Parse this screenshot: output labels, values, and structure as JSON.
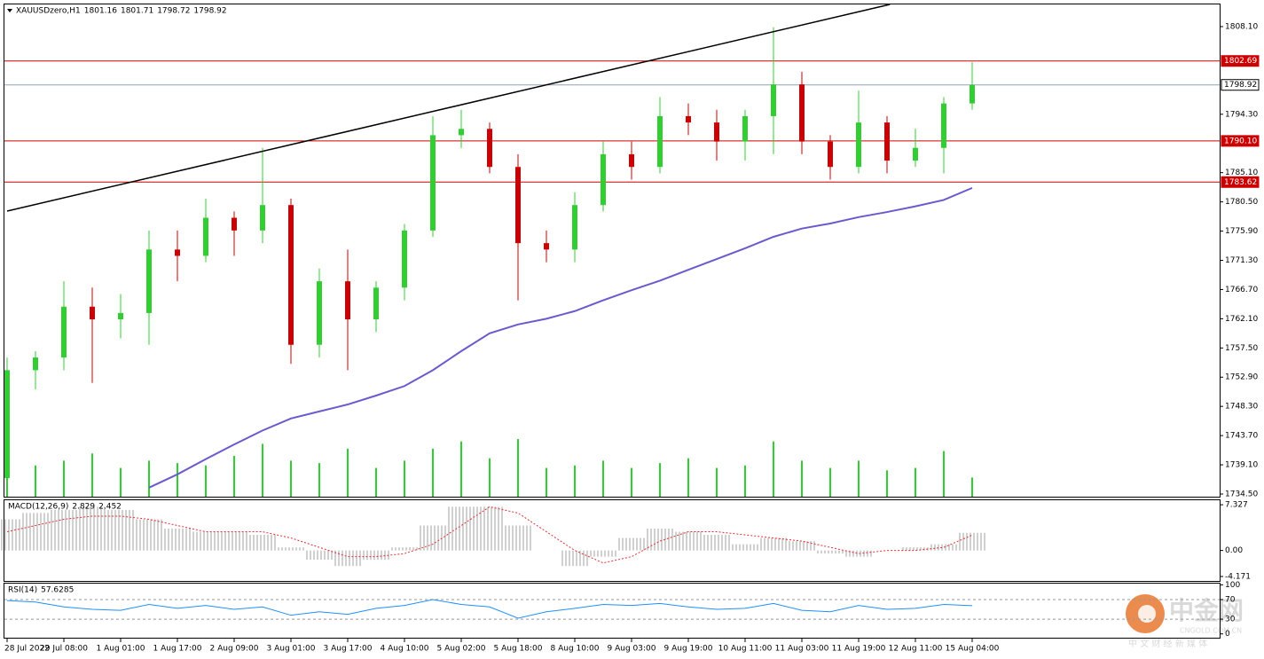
{
  "chart_data": [
    {
      "type": "candlestick",
      "title": "XAUUSDzero,H1",
      "header_values": [
        1801.16,
        1801.71,
        1798.72,
        1798.92
      ],
      "categories": [
        "28 Jul 2022",
        null,
        "29 Jul 08:00",
        null,
        "1 Aug 01:00",
        null,
        "1 Aug 17:00",
        null,
        "2 Aug 09:00",
        null,
        "3 Aug 01:00",
        null,
        "3 Aug 17:00",
        null,
        "4 Aug 10:00",
        null,
        "5 Aug 02:00",
        null,
        "5 Aug 18:00",
        null,
        "8 Aug 10:00",
        null,
        "9 Aug 03:00",
        null,
        "9 Aug 19:00",
        null,
        "10 Aug 11:00",
        null,
        "11 Aug 03:00",
        null,
        "11 Aug 19:00",
        null,
        "12 Aug 11:00",
        null,
        "15 Aug 04:00"
      ],
      "open": [
        1737,
        1754,
        1756,
        1764,
        1762,
        1763,
        1773,
        1772,
        1778,
        1776,
        1780,
        1758,
        1768,
        1762,
        1767,
        1776,
        1791,
        1792,
        1786,
        1774,
        1773,
        1780,
        1788,
        1786,
        1794,
        1793,
        1790,
        1794,
        1799,
        1790,
        1786,
        1793,
        1787,
        1789,
        1796
      ],
      "high": [
        1756,
        1757,
        1768,
        1767,
        1766,
        1776,
        1776,
        1781,
        1779,
        1789,
        1781,
        1770,
        1773,
        1768,
        1777,
        1794,
        1795,
        1793,
        1788,
        1776,
        1782,
        1790,
        1790,
        1797,
        1796,
        1795,
        1795,
        1808,
        1801,
        1791,
        1798,
        1794,
        1792,
        1797,
        1802.5
      ],
      "low": [
        1735,
        1751,
        1754,
        1752,
        1759,
        1758,
        1768,
        1771,
        1772,
        1774,
        1755,
        1756,
        1754,
        1760,
        1765,
        1775,
        1789,
        1785,
        1765,
        1771,
        1771,
        1779,
        1784,
        1785,
        1791,
        1787,
        1787,
        1788,
        1788,
        1784,
        1785,
        1785,
        1786,
        1785,
        1795
      ],
      "close": [
        1754,
        1756,
        1764,
        1762,
        1763,
        1773,
        1772,
        1778,
        1776,
        1780,
        1758,
        1768,
        1762,
        1767,
        1776,
        1791,
        1792,
        1786,
        1774,
        1773,
        1780,
        1788,
        1786,
        1794,
        1793,
        1790,
        1794,
        1799,
        1790,
        1786,
        1793,
        1787,
        1789,
        1796,
        1798.92
      ],
      "ma": {
        "color": "#6a5acd",
        "values": [
          null,
          null,
          null,
          null,
          null,
          1735.5,
          1737.6,
          1740,
          1742.3,
          1744.5,
          1746.4,
          1747.5,
          1748.6,
          1750,
          1751.5,
          1754,
          1757,
          1759.8,
          1761.2,
          1762.1,
          1763.3,
          1765,
          1766.6,
          1768.1,
          1769.8,
          1771.5,
          1773.2,
          1775,
          1776.3,
          1777.1,
          1778.1,
          1778.9,
          1779.8,
          1780.8,
          1782.7
        ]
      },
      "volume": [
        3200,
        2600,
        3000,
        3600,
        2400,
        3000,
        2800,
        2600,
        3400,
        4400,
        3000,
        2800,
        4000,
        2400,
        3000,
        4000,
        4600,
        3200,
        4800,
        2400,
        2600,
        3000,
        2400,
        2800,
        3200,
        2400,
        2600,
        4600,
        3000,
        2400,
        3000,
        2200,
        2400,
        3800,
        1600
      ],
      "bull_color": "#32cd32",
      "bear_color": "#cc0000",
      "volume_color": "#32cd32",
      "ylim": [
        1734.08,
        1811.59
      ],
      "yticks": [
        {
          "value": 1808.1,
          "label": "1808.10"
        },
        {
          "value": 1794.3,
          "label": "1794.30"
        },
        {
          "value": 1785.1,
          "label": "1785.10"
        },
        {
          "value": 1780.5,
          "label": "1780.50"
        },
        {
          "value": 1775.9,
          "label": "1775.90"
        },
        {
          "value": 1771.3,
          "label": "1771.30"
        },
        {
          "value": 1766.7,
          "label": "1766.70"
        },
        {
          "value": 1762.1,
          "label": "1762.10"
        },
        {
          "value": 1757.5,
          "label": "1757.50"
        },
        {
          "value": 1752.9,
          "label": "1752.90"
        },
        {
          "value": 1748.3,
          "label": "1748.30"
        },
        {
          "value": 1743.7,
          "label": "1743.70"
        },
        {
          "value": 1739.1,
          "label": "1739.10"
        },
        {
          "value": 1734.5,
          "label": "1734.50"
        }
      ],
      "hlines": [
        {
          "value": 1802.69,
          "color": "#cc0000"
        },
        {
          "value": 1798.92,
          "color": "#8fa3b8"
        },
        {
          "value": 1790.1,
          "label": "1790.10",
          "color": "#cc0000"
        },
        {
          "value": 1783.62,
          "color": "#cc0000"
        }
      ],
      "trendline": {
        "x": [
          0,
          31.1
        ],
        "values": [
          1779.05,
          1811.59
        ],
        "color": "#000000"
      }
    },
    {
      "type": "macd",
      "title": "MACD(12,26,9)",
      "header_values": [
        2.829,
        2.452
      ],
      "histogram": [
        5,
        6,
        6.5,
        7,
        6.5,
        5,
        3.5,
        3,
        3,
        2.5,
        0.5,
        -1.5,
        -2.5,
        -1.5,
        0.5,
        4,
        7,
        7,
        4,
        0,
        -2.5,
        -1,
        2,
        3.5,
        3,
        2.5,
        1,
        2,
        1.5,
        -0.5,
        -1,
        0,
        0.5,
        1,
        2.829
      ],
      "signal": [
        3,
        4,
        5,
        5.5,
        5.5,
        5,
        4,
        3,
        3,
        3,
        2,
        0.5,
        -1,
        -1,
        -0.5,
        1,
        4,
        7,
        6,
        3,
        0,
        -2,
        -1,
        1.5,
        3,
        3,
        2.5,
        2,
        1.5,
        0.5,
        -0.5,
        0,
        0,
        0.5,
        2.452
      ],
      "histogram_color": "#a0a0a0",
      "signal_color": "#e03030",
      "ylim": [
        -4.886,
        8.05
      ],
      "yticks": [
        7.327,
        {
          "value": 0,
          "label": "0.00"
        },
        -4.171
      ]
    },
    {
      "type": "rsi",
      "title": "RSI(14)",
      "header_values": [
        57.6285
      ],
      "values": [
        68,
        65,
        55,
        50,
        48,
        60,
        52,
        58,
        50,
        55,
        38,
        45,
        40,
        52,
        58,
        70,
        60,
        55,
        32,
        45,
        52,
        60,
        58,
        62,
        55,
        50,
        52,
        62,
        48,
        45,
        58,
        50,
        52,
        60,
        57.6285
      ],
      "color": "#1e90ff",
      "levels": [
        70,
        30
      ],
      "ylim": [
        -7.8,
        102.5
      ],
      "yticks": [
        100,
        70,
        30,
        0
      ]
    }
  ],
  "watermark": {
    "title": "中金网",
    "site": "CNGOLD.COM.CN",
    "slogan": "中 文 财 经 新 媒 体"
  }
}
